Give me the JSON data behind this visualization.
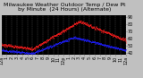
{
  "title": "Milwaukee Weather Outdoor Temp / Dew Pt",
  "subtitle": "by Minute",
  "subtitle2": "(24 Hours) (Alternate)",
  "background_color": "#000000",
  "fig_bg_color": "#c0c0c0",
  "grid_color": "#555555",
  "temp_color": "#ff2020",
  "dew_color": "#2020ff",
  "ylim": [
    38,
    92
  ],
  "ytick_values": [
    90,
    80,
    70,
    60,
    50,
    40
  ],
  "xlim": [
    0,
    1440
  ],
  "xtick_positions": [
    0,
    60,
    120,
    180,
    240,
    300,
    360,
    420,
    480,
    540,
    600,
    660,
    720,
    780,
    840,
    900,
    960,
    1020,
    1080,
    1140,
    1200,
    1260,
    1320,
    1380,
    1440
  ],
  "xtick_labels": [
    "12a",
    "1",
    "2",
    "3",
    "4",
    "5",
    "6",
    "7",
    "8",
    "9",
    "10",
    "11",
    "12p",
    "1",
    "2",
    "3",
    "4",
    "5",
    "6",
    "7",
    "8",
    "9",
    "10",
    "11",
    "12a"
  ],
  "title_fontsize": 4.5,
  "tick_fontsize": 3.5,
  "marker_size": 0.7
}
